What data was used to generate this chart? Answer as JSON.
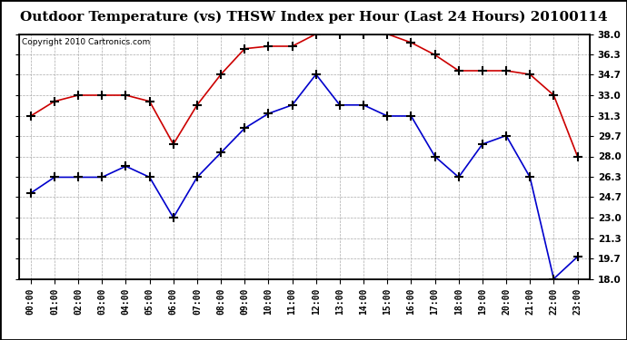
{
  "title": "Outdoor Temperature (vs) THSW Index per Hour (Last 24 Hours) 20100114",
  "copyright": "Copyright 2010 Cartronics.com",
  "hours": [
    "00:00",
    "01:00",
    "02:00",
    "03:00",
    "04:00",
    "05:00",
    "06:00",
    "07:00",
    "08:00",
    "09:00",
    "10:00",
    "11:00",
    "12:00",
    "13:00",
    "14:00",
    "15:00",
    "16:00",
    "17:00",
    "18:00",
    "19:00",
    "20:00",
    "21:00",
    "22:00",
    "23:00"
  ],
  "temp_blue": [
    25.0,
    26.3,
    26.3,
    26.3,
    27.2,
    26.3,
    23.0,
    26.3,
    28.3,
    30.3,
    31.5,
    32.2,
    34.7,
    32.2,
    32.2,
    31.3,
    31.3,
    28.0,
    26.3,
    29.0,
    29.7,
    26.3,
    18.0,
    19.8
  ],
  "thsw_red": [
    31.3,
    32.5,
    33.0,
    33.0,
    33.0,
    32.5,
    29.0,
    32.2,
    34.7,
    36.8,
    37.0,
    37.0,
    38.0,
    38.0,
    38.0,
    38.0,
    37.3,
    36.3,
    35.0,
    35.0,
    35.0,
    34.7,
    33.0,
    28.0
  ],
  "ylim": [
    18.0,
    38.0
  ],
  "yticks": [
    18.0,
    19.7,
    21.3,
    23.0,
    24.7,
    26.3,
    28.0,
    29.7,
    31.3,
    33.0,
    34.7,
    36.3,
    38.0
  ],
  "blue_color": "#0000cc",
  "red_color": "#cc0000",
  "background_color": "#ffffff",
  "grid_color": "#aaaaaa",
  "title_fontsize": 11,
  "copyright_fontsize": 6.5
}
